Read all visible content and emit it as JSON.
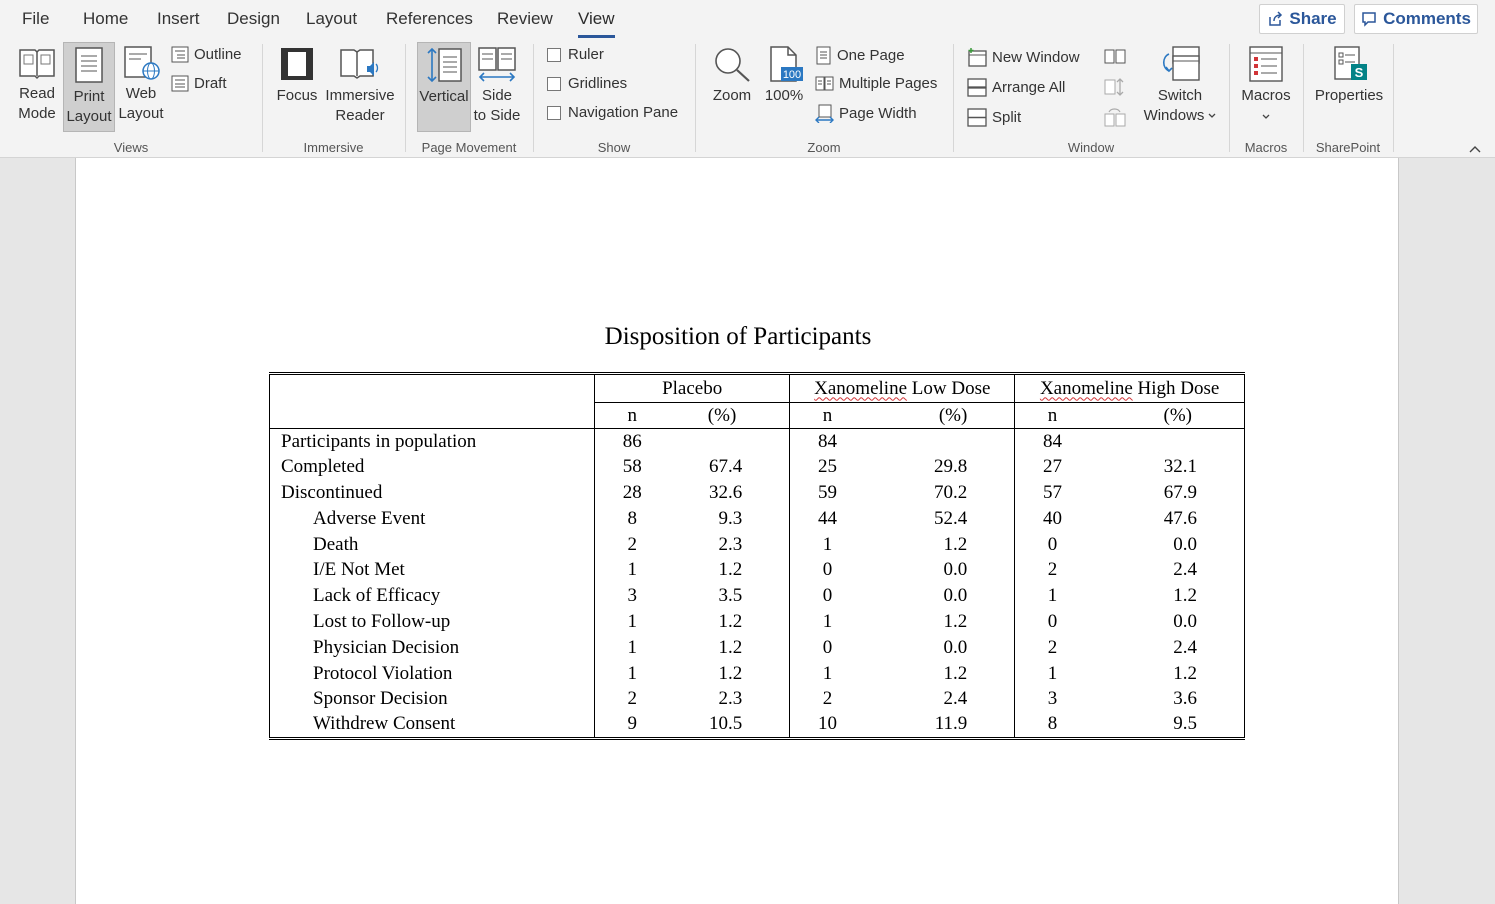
{
  "menu": {
    "tabs": [
      "File",
      "Home",
      "Insert",
      "Design",
      "Layout",
      "References",
      "Review",
      "View"
    ],
    "active_tab": "View",
    "share_label": "Share",
    "comments_label": "Comments"
  },
  "ribbon": {
    "views": {
      "read_mode": [
        "Read",
        "Mode"
      ],
      "print_layout": [
        "Print",
        "Layout"
      ],
      "web_layout": [
        "Web",
        "Layout"
      ],
      "outline": "Outline",
      "draft": "Draft",
      "group_label": "Views"
    },
    "immersive": {
      "focus": "Focus",
      "immersive_reader": [
        "Immersive",
        "Reader"
      ],
      "group_label": "Immersive"
    },
    "page_movement": {
      "vertical": "Vertical",
      "side_to_side": [
        "Side",
        "to Side"
      ],
      "group_label": "Page Movement"
    },
    "show": {
      "ruler": "Ruler",
      "gridlines": "Gridlines",
      "navigation_pane": "Navigation Pane",
      "group_label": "Show"
    },
    "zoom": {
      "zoom": "Zoom",
      "hundred": "100%",
      "hundred_icon_text": "100",
      "one_page": "One Page",
      "multiple_pages": "Multiple Pages",
      "page_width": "Page Width",
      "group_label": "Zoom"
    },
    "window": {
      "new_window": "New Window",
      "arrange_all": "Arrange All",
      "split": "Split",
      "switch_windows": [
        "Switch",
        "Windows"
      ],
      "group_label": "Window"
    },
    "macros": {
      "label": "Macros",
      "group_label": "Macros"
    },
    "sharepoint": {
      "properties": "Properties",
      "group_label": "SharePoint"
    }
  },
  "document": {
    "title": "Disposition of Participants",
    "columns": {
      "groups": [
        "Placebo",
        "Xanomeline Low Dose",
        "Xanomeline High Dose"
      ],
      "group_squiggle": [
        "",
        "Xanomeline",
        "Xanomeline"
      ],
      "group_rest": [
        "Placebo",
        " Low Dose",
        " High Dose"
      ],
      "n_label": "n",
      "pct_label": "(%)"
    },
    "rows": [
      {
        "label": "Participants in population",
        "indent": false,
        "vals": [
          "86",
          "",
          "84",
          "",
          "84",
          ""
        ]
      },
      {
        "label": "Completed",
        "indent": false,
        "vals": [
          "58",
          "67.4",
          "25",
          "29.8",
          "27",
          "32.1"
        ]
      },
      {
        "label": "Discontinued",
        "indent": false,
        "vals": [
          "28",
          "32.6",
          "59",
          "70.2",
          "57",
          "67.9"
        ]
      },
      {
        "label": "Adverse Event",
        "indent": true,
        "vals": [
          "8",
          "9.3",
          "44",
          "52.4",
          "40",
          "47.6"
        ]
      },
      {
        "label": "Death",
        "indent": true,
        "vals": [
          "2",
          "2.3",
          "1",
          "1.2",
          "0",
          "0.0"
        ]
      },
      {
        "label": "I/E Not Met",
        "indent": true,
        "vals": [
          "1",
          "1.2",
          "0",
          "0.0",
          "2",
          "2.4"
        ]
      },
      {
        "label": "Lack of Efficacy",
        "indent": true,
        "vals": [
          "3",
          "3.5",
          "0",
          "0.0",
          "1",
          "1.2"
        ]
      },
      {
        "label": "Lost to Follow-up",
        "indent": true,
        "vals": [
          "1",
          "1.2",
          "1",
          "1.2",
          "0",
          "0.0"
        ]
      },
      {
        "label": "Physician Decision",
        "indent": true,
        "vals": [
          "1",
          "1.2",
          "0",
          "0.0",
          "2",
          "2.4"
        ]
      },
      {
        "label": "Protocol Violation",
        "indent": true,
        "vals": [
          "1",
          "1.2",
          "1",
          "1.2",
          "1",
          "1.2"
        ]
      },
      {
        "label": "Sponsor Decision",
        "indent": true,
        "vals": [
          "2",
          "2.3",
          "2",
          "2.4",
          "3",
          "3.6"
        ]
      },
      {
        "label": "Withdrew Consent",
        "indent": true,
        "vals": [
          "9",
          "10.5",
          "10",
          "11.9",
          "8",
          "9.5"
        ]
      }
    ]
  },
  "colors": {
    "accent": "#2b579a",
    "ribbon_bg": "#f3f3f3",
    "canvas_bg": "#e6e6e6",
    "spellcheck": "#d13438"
  }
}
